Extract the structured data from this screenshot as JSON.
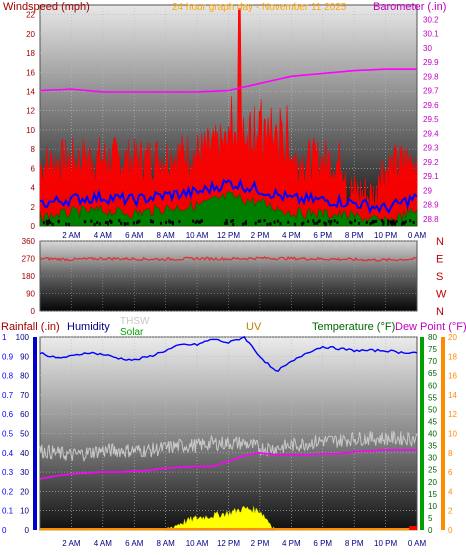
{
  "header": {
    "left_label": "Windspeed (mph)",
    "center_label": "24 hour graph day - November 11 2025",
    "right_label": "Barometer (.in)"
  },
  "colors": {
    "wind": "#ff0000",
    "gust": "#ff0000",
    "wind_avg": "#0000ff",
    "wind_low": "#007f00",
    "barometer": "#ff00ff",
    "direction": "#e03030",
    "humidity": "#0000ff",
    "temperature": "#c8c8c8",
    "dewpoint": "#ff00ff",
    "solar": "#ffff00",
    "uv": "#ff8c00",
    "rain": "#ff0000",
    "rain_axis": "#0000ff",
    "uv_axis": "#ff8c00",
    "temp_axis": "#006400",
    "dew_axis": "#ff00ff",
    "title_orange": "#ffa500",
    "axis_red": "#a00000"
  },
  "time_ticks": [
    "2 AM",
    "4 AM",
    "6 AM",
    "8 AM",
    "10 AM",
    "12 PM",
    "2 PM",
    "4 PM",
    "6 PM",
    "8 PM",
    "10 PM",
    "0 AM"
  ],
  "panel3_labels": {
    "rainfall": "Rainfall (.in)",
    "humidity": "Humidity",
    "thsw": "THSW",
    "solar": "Solar",
    "uv": "UV",
    "temperature": "Temperature (°F)",
    "dewpoint": "Dew Point (°F)"
  },
  "chart_data": [
    {
      "type": "line",
      "title": "24 hour graph day - November 11 2025",
      "ylabel": "Windspeed (mph)",
      "ylim": [
        0,
        23
      ],
      "y_ticks": [
        "0",
        "2",
        "4",
        "6",
        "8",
        "10",
        "12",
        "14",
        "16",
        "18",
        "20",
        "22"
      ],
      "y2label": "Barometer (.in)",
      "y2lim": [
        28.75,
        30.3
      ],
      "y2_ticks": [
        "28.8",
        "28.9",
        "29",
        "29.1",
        "29.2",
        "29.3",
        "29.4",
        "29.5",
        "29.6",
        "29.7",
        "29.8",
        "29.9",
        "30",
        "30.1",
        "30.2"
      ],
      "x_hours": [
        0,
        2,
        4,
        6,
        8,
        10,
        12,
        14,
        16,
        18,
        20,
        22,
        24
      ],
      "series": [
        {
          "name": "Windspeed (mph)",
          "values": [
            2.3,
            2.8,
            3,
            2.7,
            3.2,
            3.5,
            4.5,
            3.8,
            2.8,
            2.7,
            2.4,
            1.8,
            3
          ]
        },
        {
          "name": "Barometer (.in)",
          "values": [
            29.7,
            29.71,
            29.69,
            29.69,
            29.69,
            29.69,
            29.7,
            29.75,
            29.8,
            29.82,
            29.84,
            29.85,
            29.85
          ]
        }
      ],
      "gust_peak": 22.6
    },
    {
      "type": "line",
      "ylabel": "Wind Direction",
      "ylim": [
        0,
        360
      ],
      "y_ticks": [
        "0",
        "90",
        "180",
        "270",
        "360"
      ],
      "right_ticks": [
        "N",
        "W",
        "S",
        "E",
        "N"
      ],
      "x_hours": [
        0,
        2,
        4,
        6,
        8,
        10,
        12,
        14,
        16,
        18,
        20,
        22,
        24
      ],
      "values": [
        270,
        265,
        270,
        268,
        266,
        270,
        268,
        272,
        270,
        268,
        265,
        262,
        268
      ]
    },
    {
      "type": "line",
      "rain_ticks": [
        "0",
        "0.1",
        "0.2",
        "0.3",
        "0.4",
        "0.5",
        "0.6",
        "0.7",
        "0.8",
        "0.9",
        "1"
      ],
      "humidity_ticks": [
        "0",
        "10",
        "20",
        "30",
        "40",
        "50",
        "60",
        "70",
        "80",
        "90",
        "100"
      ],
      "temp_ticks": [
        "0",
        "5",
        "10",
        "15",
        "20",
        "25",
        "30",
        "35",
        "40",
        "45",
        "50",
        "55",
        "60",
        "65",
        "70",
        "75",
        "80"
      ],
      "dew_ticks": [
        "0",
        "2",
        "4",
        "6",
        "8",
        "10",
        "12",
        "14",
        "16",
        "18",
        "20"
      ],
      "ylim_rain": [
        0,
        1
      ],
      "ylim_humidity": [
        0,
        100
      ],
      "ylim_temperature": [
        0,
        80
      ],
      "ylim_dewpoint": [
        0,
        20
      ],
      "x_hours": [
        0,
        1,
        2,
        3,
        4,
        5,
        6,
        7,
        8,
        9,
        10,
        11,
        12,
        13,
        14,
        15,
        16,
        17,
        18,
        19,
        20,
        21,
        22,
        23,
        24
      ],
      "series": [
        {
          "name": "Humidity",
          "values": [
            92,
            89,
            90,
            92,
            91,
            89,
            88,
            90,
            93,
            96,
            96,
            99,
            97,
            100,
            90,
            82,
            87,
            92,
            95,
            94,
            93,
            93,
            93,
            92,
            92
          ]
        },
        {
          "name": "THSW",
          "values": [
            33,
            32,
            31,
            32,
            33,
            33,
            33,
            33,
            34,
            35,
            35,
            36,
            36,
            36,
            34,
            34,
            35,
            36,
            37,
            37,
            38,
            38,
            38,
            38,
            38
          ]
        },
        {
          "name": "Dew Point (°F)",
          "values": [
            5.3,
            5.6,
            5.8,
            5.9,
            6,
            6,
            6.1,
            6.2,
            6.4,
            6.5,
            6.6,
            6.6,
            7.1,
            7.7,
            8,
            7.8,
            7.8,
            7.8,
            7.9,
            7.9,
            8.1,
            8.2,
            8.3,
            8.3,
            8.3
          ]
        },
        {
          "name": "Solar",
          "values": [
            0,
            0,
            0,
            0,
            0,
            0,
            0,
            0,
            0,
            3,
            5,
            6,
            7,
            9,
            8,
            0,
            0,
            0,
            0,
            0,
            0,
            0,
            0,
            0,
            0
          ]
        },
        {
          "name": "UV",
          "values": [
            0,
            0,
            0,
            0,
            0,
            0,
            0,
            0,
            0,
            0,
            0,
            0,
            0,
            0,
            0,
            0,
            0,
            0,
            0,
            0,
            0,
            0,
            0,
            0,
            0
          ]
        }
      ]
    }
  ]
}
